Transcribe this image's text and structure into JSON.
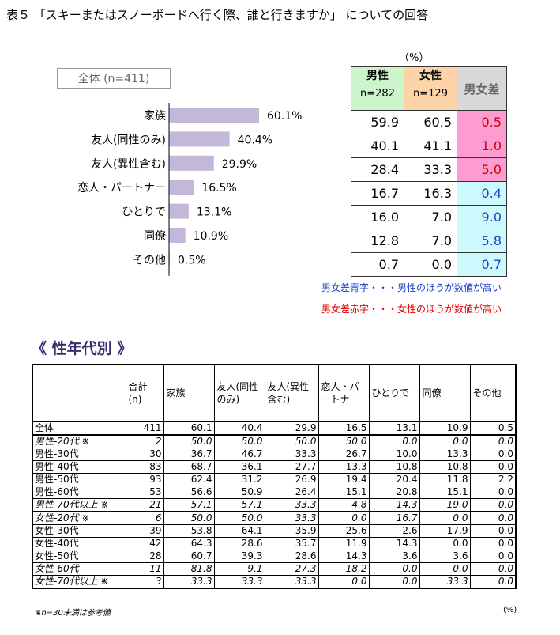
{
  "title": "表５ 「スキーまたはスノーボードへ行く際、誰と行きますか」 についての回答",
  "total_label": "全体 (n=411)",
  "unit_label": "（%）",
  "chart_data": {
    "type": "bar",
    "categories": [
      "家族",
      "友人(同性のみ)",
      "友人(異性含む)",
      "恋人・パートナー",
      "ひとりで",
      "同僚",
      "その他"
    ],
    "values": [
      60.1,
      40.4,
      29.9,
      16.5,
      13.1,
      10.9,
      0.5
    ],
    "value_labels": [
      "60.1%",
      "40.4%",
      "29.9%",
      "16.5%",
      "13.1%",
      "10.9%",
      "0.5%"
    ],
    "bar_color": "#c3b8d8",
    "xlim": [
      0,
      100
    ]
  },
  "comparison": {
    "headers": {
      "male": "男性",
      "male_n": "n=282",
      "female": "女性",
      "female_n": "n=129",
      "diff": "男女差"
    },
    "rows": [
      {
        "male": "59.9",
        "female": "60.5",
        "diff": "0.5",
        "color": "red"
      },
      {
        "male": "40.1",
        "female": "41.1",
        "diff": "1.0",
        "color": "red"
      },
      {
        "male": "28.4",
        "female": "33.3",
        "diff": "5.0",
        "color": "red"
      },
      {
        "male": "16.7",
        "female": "16.3",
        "diff": "0.4",
        "color": "blue"
      },
      {
        "male": "16.0",
        "female": "7.0",
        "diff": "9.0",
        "color": "blue"
      },
      {
        "male": "12.8",
        "female": "7.0",
        "diff": "5.8",
        "color": "blue"
      },
      {
        "male": "0.7",
        "female": "0.0",
        "diff": "0.7",
        "color": "blue"
      }
    ],
    "legend_blue": "男女差青字・・・男性のほうが数値が高い",
    "legend_red": "男女差赤字・・・女性のほうが数値が高い"
  },
  "section_title": "《 性年代別 》",
  "table": {
    "headers": [
      "",
      "合計\n(n)",
      "家族",
      "友人(同性のみ)",
      "友人(異性含む)",
      "恋人・パートナー",
      "ひとりで",
      "同僚",
      "その他"
    ],
    "rows": [
      {
        "label": "全体",
        "cells": [
          "411",
          "60.1",
          "40.4",
          "29.9",
          "16.5",
          "13.1",
          "10.9",
          "0.5"
        ],
        "italic": false
      },
      {
        "label": "男性-20代 ※",
        "cells": [
          "2",
          "50.0",
          "50.0",
          "50.0",
          "50.0",
          "0.0",
          "0.0",
          "0.0"
        ],
        "italic": true
      },
      {
        "label": "男性-30代",
        "cells": [
          "30",
          "36.7",
          "46.7",
          "33.3",
          "26.7",
          "10.0",
          "13.3",
          "0.0"
        ],
        "italic": false
      },
      {
        "label": "男性-40代",
        "cells": [
          "83",
          "68.7",
          "36.1",
          "27.7",
          "13.3",
          "10.8",
          "10.8",
          "0.0"
        ],
        "italic": false
      },
      {
        "label": "男性-50代",
        "cells": [
          "93",
          "62.4",
          "31.2",
          "26.9",
          "19.4",
          "20.4",
          "11.8",
          "2.2"
        ],
        "italic": false
      },
      {
        "label": "男性-60代",
        "cells": [
          "53",
          "56.6",
          "50.9",
          "26.4",
          "15.1",
          "20.8",
          "15.1",
          "0.0"
        ],
        "italic": false
      },
      {
        "label": "男性-70代以上 ※",
        "cells": [
          "21",
          "57.1",
          "57.1",
          "33.3",
          "4.8",
          "14.3",
          "19.0",
          "0.0"
        ],
        "italic": true
      },
      {
        "label": "女性-20代 ※",
        "cells": [
          "6",
          "50.0",
          "50.0",
          "33.3",
          "0.0",
          "16.7",
          "0.0",
          "0.0"
        ],
        "italic": true
      },
      {
        "label": "女性-30代",
        "cells": [
          "39",
          "53.8",
          "64.1",
          "35.9",
          "25.6",
          "2.6",
          "17.9",
          "0.0"
        ],
        "italic": false
      },
      {
        "label": "女性-40代",
        "cells": [
          "42",
          "64.3",
          "28.6",
          "35.7",
          "11.9",
          "14.3",
          "0.0",
          "0.0"
        ],
        "italic": false
      },
      {
        "label": "女性-50代",
        "cells": [
          "28",
          "60.7",
          "39.3",
          "28.6",
          "14.3",
          "3.6",
          "3.6",
          "0.0"
        ],
        "italic": false
      },
      {
        "label": "女性-60代",
        "cells": [
          "11",
          "81.8",
          "9.1",
          "27.3",
          "18.2",
          "0.0",
          "0.0",
          "0.0"
        ],
        "italic": true
      },
      {
        "label": "女性-70代以上 ※",
        "cells": [
          "3",
          "33.3",
          "33.3",
          "33.3",
          "0.0",
          "0.0",
          "33.3",
          "0.0"
        ],
        "italic": true
      }
    ],
    "note": "※n=30未満は参考値",
    "unit": "(%)"
  }
}
